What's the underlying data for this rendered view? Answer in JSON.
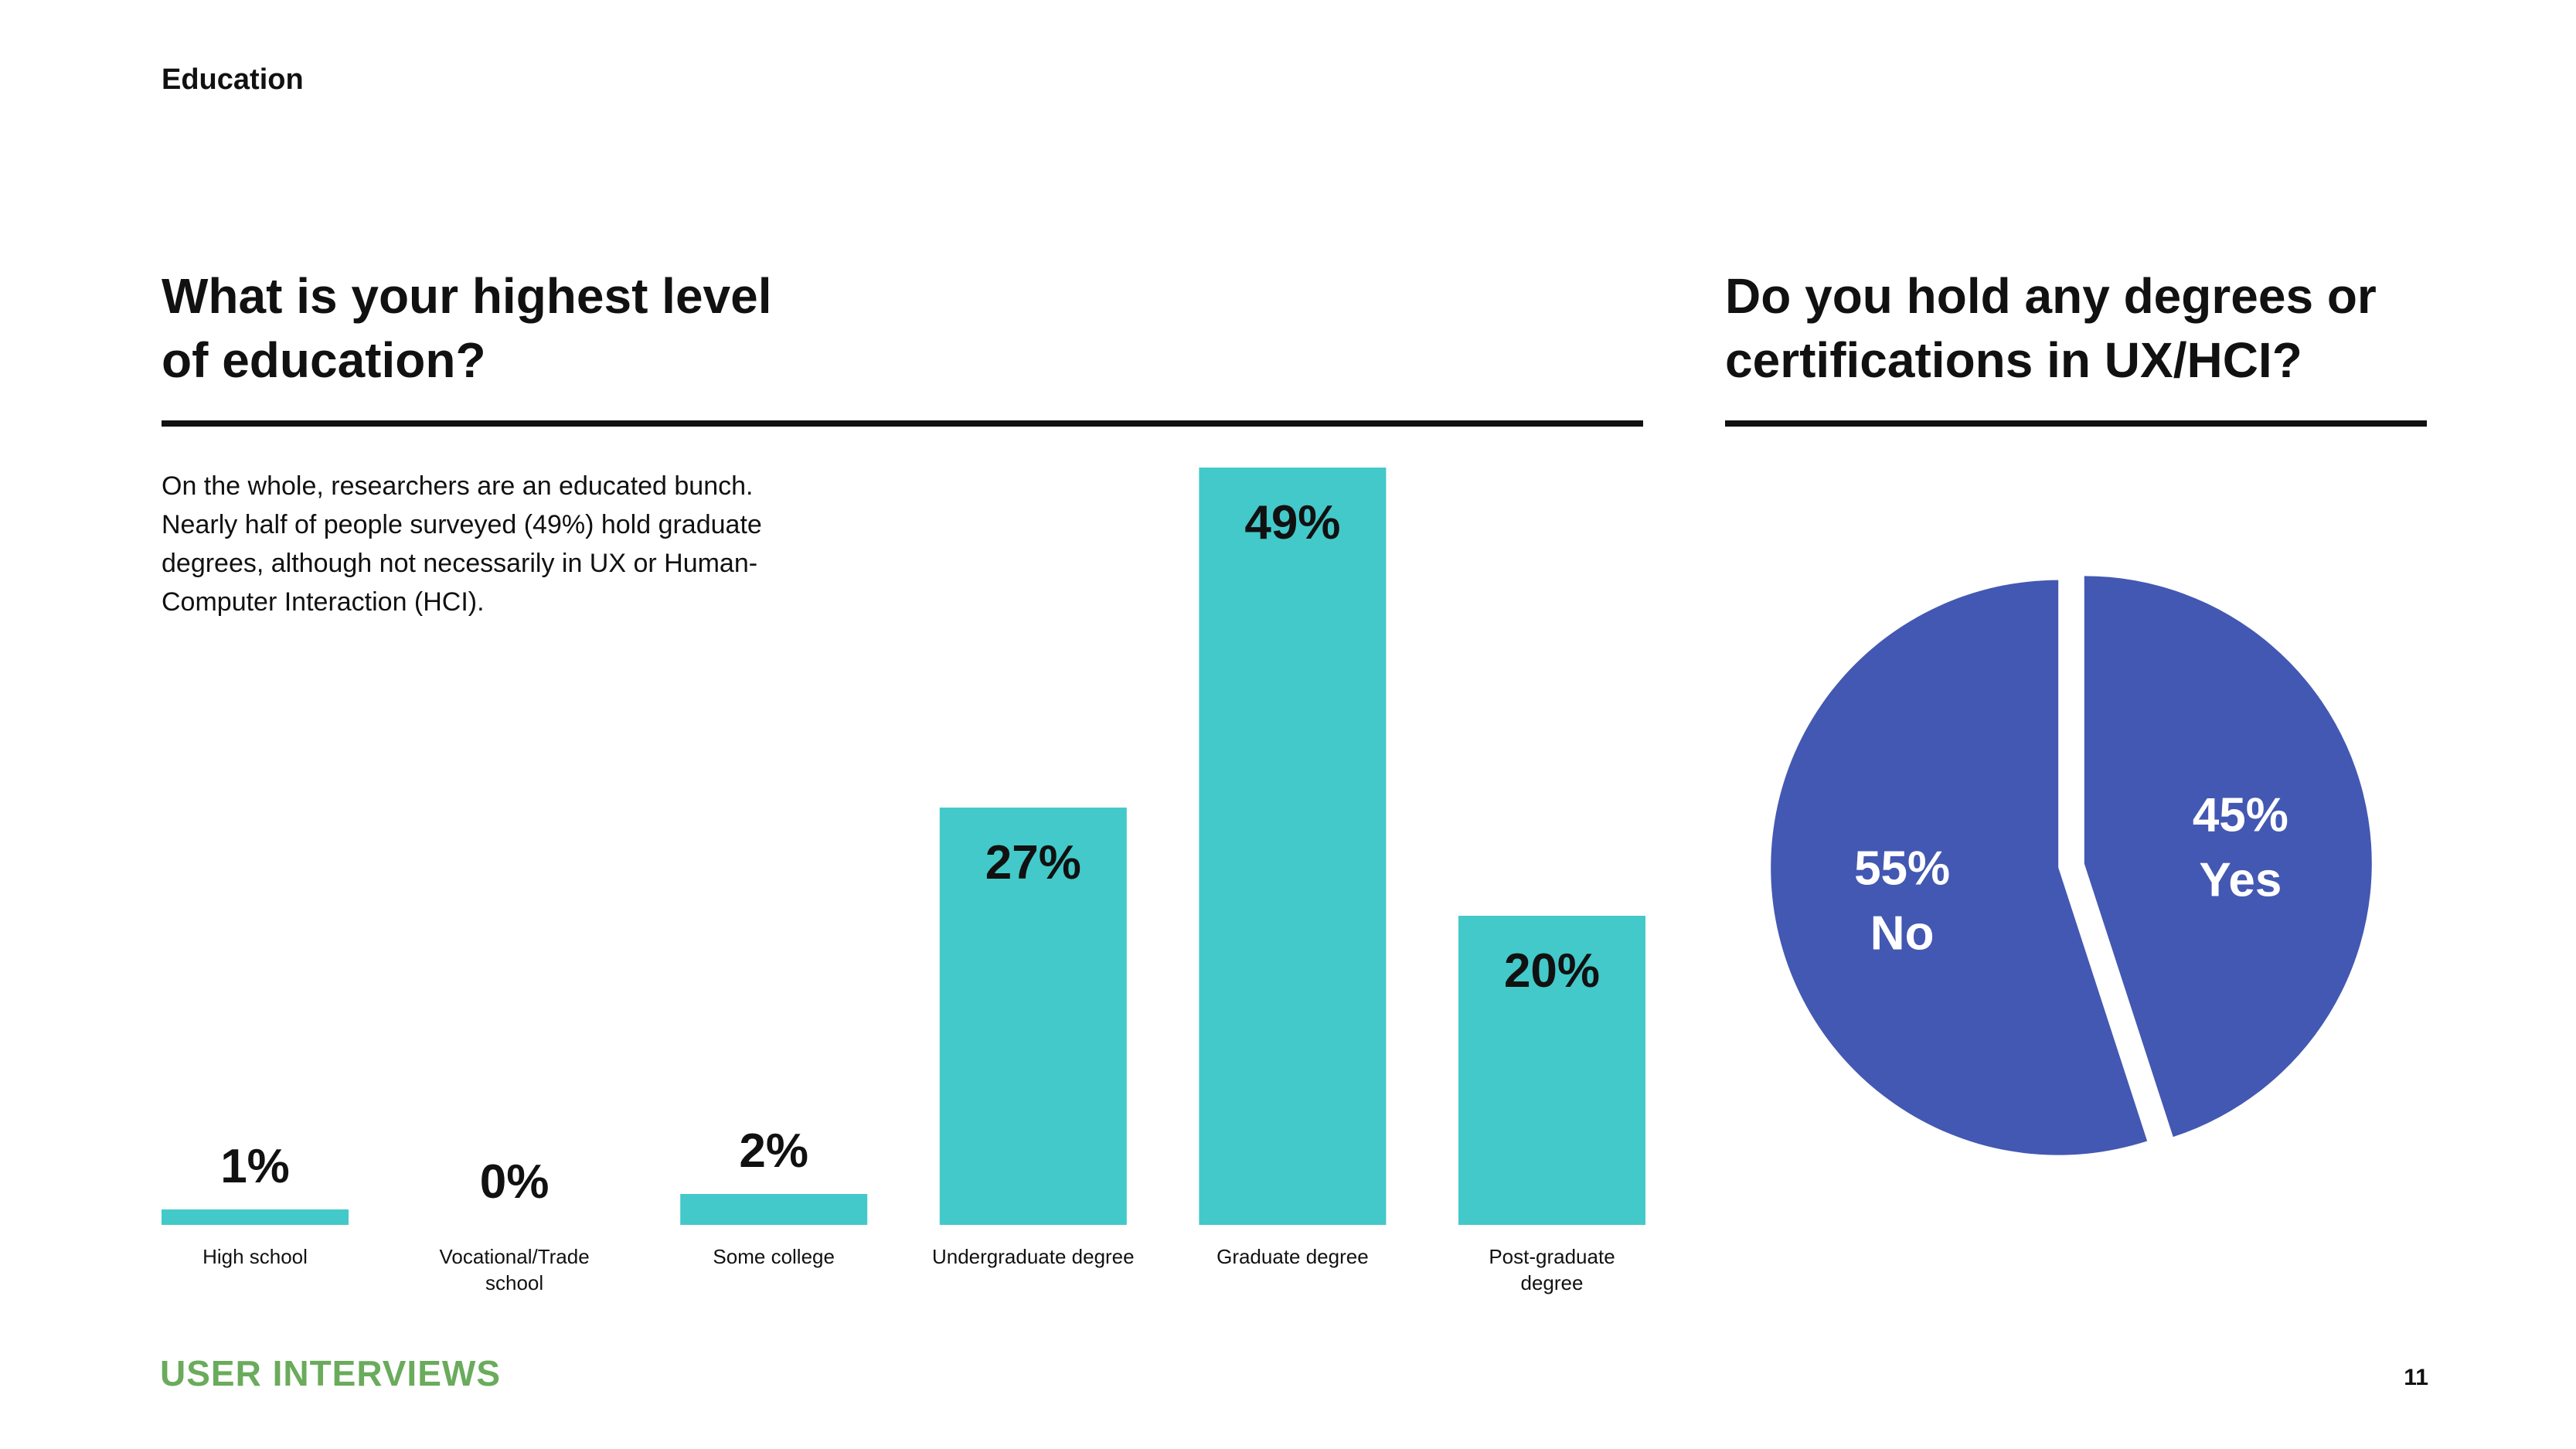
{
  "page": {
    "section": "Education",
    "brand": "USER INTERVIEWS",
    "page_number": "11"
  },
  "left": {
    "title_line1": "What is your highest level",
    "title_line2": "of education?",
    "intro_lines": [
      "On the whole, researchers are an educated bunch.",
      "Nearly half of people surveyed (49%) hold graduate",
      "degrees, although not necessarily in UX or Human-",
      "Computer Interaction (HCI)."
    ]
  },
  "right": {
    "title_line1": "Do you hold any degrees or",
    "title_line2": "certifications in UX/HCI?"
  },
  "chart_data": [
    {
      "type": "bar",
      "categories": [
        "High school",
        "Vocational/Trade school",
        "Some college",
        "Undergraduate degree",
        "Graduate degree",
        "Post-graduate degree"
      ],
      "category_lines": [
        [
          "High school"
        ],
        [
          "Vocational/Trade",
          "school"
        ],
        [
          "Some college"
        ],
        [
          "Undergraduate degree"
        ],
        [
          "Graduate degree"
        ],
        [
          "Post-graduate",
          "degree"
        ]
      ],
      "values": [
        1,
        0,
        2,
        27,
        49,
        20
      ],
      "value_labels": [
        "1%",
        "0%",
        "2%",
        "27%",
        "49%",
        "20%"
      ],
      "title": "What is your highest level of education?",
      "ylim": [
        0,
        49
      ],
      "grid": false,
      "color": "#43c9c9"
    },
    {
      "type": "pie",
      "title": "Do you hold any degrees or certifications in UX/HCI?",
      "slices": [
        {
          "label": "Yes",
          "value": 45,
          "value_label": "45%",
          "color": "#4358b2"
        },
        {
          "label": "No",
          "value": 55,
          "value_label": "55%",
          "color": "#4358b2"
        }
      ],
      "start": "12 o'clock, clockwise",
      "exploded": true
    }
  ]
}
